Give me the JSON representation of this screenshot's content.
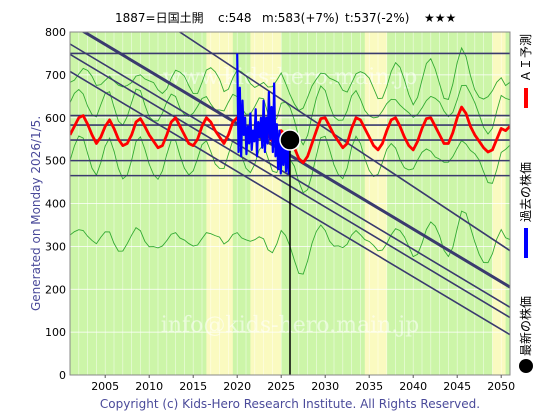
{
  "header": {
    "ticker": "1887=日国土開",
    "current": "c:548",
    "model": "m:583(+7%)",
    "target": "t:537(-2%)",
    "stars": "★★★"
  },
  "side_text": "Generated on Monday 2026/1/5.",
  "legend": {
    "latest": "最新の株価",
    "past": "過去の株価",
    "forecast": "ＡＩ予測"
  },
  "footer": "Copyright (c) Kids-Hero Research Institute. All Rights Reserved.",
  "watermarks": [
    "www.kids-hero.main.jp",
    "info@kids-hero.main.jp"
  ],
  "colors": {
    "forecast": "#ff0000",
    "past": "#0000ff",
    "latest": "#000000",
    "band_green": "#ccf5a8",
    "band_yellow": "#fafac0",
    "band_line": "#33aa33",
    "trend": "#3a3a6e",
    "footer": "#4a4a9a"
  },
  "chart_data": {
    "type": "line",
    "x_range": [
      2001,
      2051
    ],
    "y_range": [
      0,
      800
    ],
    "x_ticks": [
      2005,
      2010,
      2015,
      2020,
      2025,
      2030,
      2035,
      2040,
      2045,
      2050
    ],
    "y_ticks": [
      0,
      100,
      200,
      300,
      400,
      500,
      600,
      700,
      800
    ],
    "latest_point": {
      "x": 2026.0,
      "y": 548
    },
    "horizontal_lines": [
      750,
      605,
      583,
      548,
      500,
      465
    ],
    "trend_lines": [
      {
        "x1": 2001,
        "y1": 820,
        "x2": 2051,
        "y2": 205,
        "heavy": true
      },
      {
        "x1": 2001,
        "y1": 772,
        "x2": 2051,
        "y2": 158,
        "heavy": false
      },
      {
        "x1": 2001,
        "y1": 748,
        "x2": 2051,
        "y2": 134,
        "heavy": false
      },
      {
        "x1": 2001,
        "y1": 708,
        "x2": 2051,
        "y2": 94,
        "heavy": false
      },
      {
        "x1": 2012,
        "y1": 820,
        "x2": 2051,
        "y2": 290,
        "heavy": false
      }
    ],
    "yellow_spans": [
      [
        2016.5,
        2019.5
      ],
      [
        2021.5,
        2025.0
      ],
      [
        2034.5,
        2037.0
      ],
      [
        2049.0,
        2050.5
      ]
    ],
    "past_series": {
      "name": "過去の株価",
      "x": [
        2020.0,
        2020.15,
        2020.3,
        2020.45,
        2020.6,
        2020.75,
        2020.9,
        2021.05,
        2021.2,
        2021.35,
        2021.5,
        2021.65,
        2021.8,
        2021.95,
        2022.1,
        2022.25,
        2022.4,
        2022.55,
        2022.7,
        2022.85,
        2023.0,
        2023.15,
        2023.3,
        2023.45,
        2023.6,
        2023.75,
        2023.9,
        2024.05,
        2024.2,
        2024.35,
        2024.5,
        2024.65,
        2024.8,
        2024.95,
        2025.1,
        2025.25,
        2025.4,
        2025.55,
        2025.7,
        2025.85,
        2026.0
      ],
      "y": [
        750,
        520,
        670,
        510,
        640,
        560,
        600,
        515,
        580,
        540,
        610,
        525,
        570,
        545,
        620,
        510,
        590,
        555,
        600,
        530,
        640,
        520,
        600,
        540,
        660,
        550,
        625,
        520,
        680,
        510,
        585,
        480,
        570,
        470,
        545,
        490,
        560,
        475,
        535,
        470,
        548
      ]
    },
    "forecast_series": {
      "name": "ＡＩ予測",
      "x": [
        2001.0,
        2001.5,
        2002.0,
        2002.5,
        2003.0,
        2003.5,
        2004.0,
        2004.5,
        2005.0,
        2005.5,
        2006.0,
        2006.5,
        2007.0,
        2007.5,
        2008.0,
        2008.5,
        2009.0,
        2009.5,
        2010.0,
        2010.5,
        2011.0,
        2011.5,
        2012.0,
        2012.5,
        2013.0,
        2013.5,
        2014.0,
        2014.5,
        2015.0,
        2015.5,
        2016.0,
        2016.5,
        2017.0,
        2017.5,
        2018.0,
        2018.5,
        2019.0,
        2019.5,
        2020.0,
        2020.5,
        2021.0,
        2021.5,
        2022.0,
        2022.5,
        2023.0,
        2023.5,
        2024.0,
        2024.5,
        2025.0,
        2025.5,
        2026.0,
        2026.5,
        2027.0,
        2027.5,
        2028.0,
        2028.5,
        2029.0,
        2029.5,
        2030.0,
        2030.5,
        2031.0,
        2031.5,
        2032.0,
        2032.5,
        2033.0,
        2033.5,
        2034.0,
        2034.5,
        2035.0,
        2035.5,
        2036.0,
        2036.5,
        2037.0,
        2037.5,
        2038.0,
        2038.5,
        2039.0,
        2039.5,
        2040.0,
        2040.5,
        2041.0,
        2041.5,
        2042.0,
        2042.5,
        2043.0,
        2043.5,
        2044.0,
        2044.5,
        2045.0,
        2045.5,
        2046.0,
        2046.5,
        2047.0,
        2047.5,
        2048.0,
        2048.5,
        2049.0,
        2049.5,
        2050.0,
        2050.5,
        2051.0
      ],
      "y": [
        560,
        580,
        600,
        605,
        585,
        560,
        540,
        555,
        580,
        595,
        575,
        550,
        535,
        540,
        560,
        590,
        598,
        580,
        560,
        545,
        530,
        535,
        560,
        590,
        600,
        580,
        560,
        540,
        535,
        550,
        580,
        600,
        590,
        570,
        555,
        540,
        560,
        590,
        600,
        580,
        560,
        545,
        550,
        570,
        580,
        560,
        545,
        550,
        570,
        560,
        548,
        530,
        505,
        495,
        510,
        540,
        570,
        598,
        600,
        580,
        560,
        545,
        530,
        540,
        575,
        600,
        595,
        575,
        555,
        535,
        525,
        540,
        570,
        595,
        600,
        580,
        555,
        535,
        525,
        545,
        575,
        598,
        600,
        580,
        560,
        540,
        540,
        565,
        600,
        625,
        610,
        580,
        560,
        545,
        530,
        520,
        525,
        550,
        575,
        570,
        580
      ]
    }
  }
}
